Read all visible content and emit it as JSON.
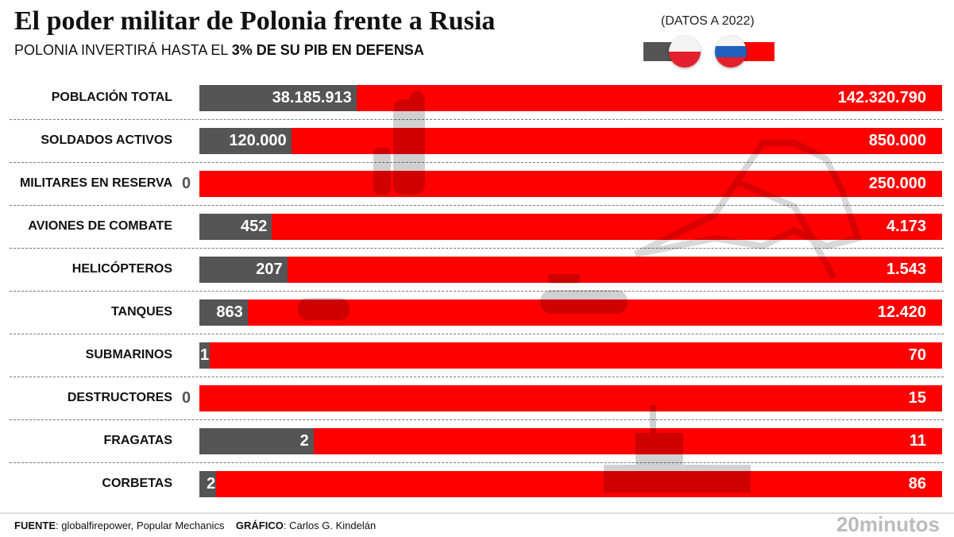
{
  "header": {
    "title": "El poder militar de Polonia frente a Rusia",
    "subtitle_prefix": "POLONIA INVERTIRÁ HASTA EL ",
    "subtitle_bold": "3% DE SU PIB EN DEFENSA",
    "date_note": "(DATOS A 2022)"
  },
  "colors": {
    "poland": "#555555",
    "russia": "#ff0000"
  },
  "chart_data": {
    "type": "bar",
    "orientation": "horizontal-stacked-100",
    "categories": [
      "POBLACIÓN TOTAL",
      "SOLDADOS ACTIVOS",
      "MILITARES EN RESERVA",
      "AVIONES DE COMBATE",
      "HELICÓPTEROS",
      "TANQUES",
      "SUBMARINOS",
      "DESTRUCTORES",
      "FRAGATAS",
      "CORBETAS"
    ],
    "series": [
      {
        "country": "poland",
        "values": [
          38185913,
          120000,
          0,
          452,
          207,
          863,
          1,
          0,
          2,
          2
        ],
        "labels": [
          "38.185.913",
          "120.000",
          "0",
          "452",
          "207",
          "863",
          "1",
          "0",
          "2",
          "2"
        ]
      },
      {
        "country": "russia",
        "values": [
          142320790,
          850000,
          250000,
          4173,
          1543,
          12420,
          70,
          15,
          11,
          86
        ],
        "labels": [
          "142.320.790",
          "850.000",
          "250.000",
          "4.173",
          "1.543",
          "12.420",
          "70",
          "15",
          "11",
          "86"
        ]
      }
    ]
  },
  "footer": {
    "source_label": "FUENTE",
    "source": ": globalfirepower, Popular Mechanics",
    "graphic_label": "GRÁFICO",
    "graphic": ": Carlos G. Kindelán",
    "logo": "20minutos"
  }
}
